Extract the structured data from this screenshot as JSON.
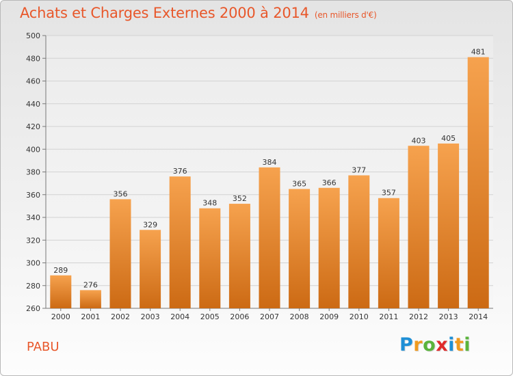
{
  "header": {
    "title": "Achats et Charges Externes 2000 à 2014",
    "subtitle": "(en milliers d'€)"
  },
  "footer": {
    "commune": "PABU",
    "brand_letters": [
      "P",
      "r",
      "o",
      "x",
      "i",
      "t",
      "i"
    ],
    "brand_colors": [
      "#1e8fd6",
      "#f09a1e",
      "#5ab43c",
      "#e02b2b",
      "#1e8fd6",
      "#f09a1e",
      "#5ab43c"
    ]
  },
  "chart_data": {
    "type": "bar",
    "title": "Achats et Charges Externes 2000 à 2014",
    "subtitle": "(en milliers d'€)",
    "categories": [
      "2000",
      "2001",
      "2002",
      "2003",
      "2004",
      "2005",
      "2006",
      "2007",
      "2008",
      "2009",
      "2010",
      "2011",
      "2012",
      "2013",
      "2014"
    ],
    "values": [
      289,
      276,
      356,
      329,
      376,
      348,
      352,
      384,
      365,
      366,
      377,
      357,
      403,
      405,
      481
    ],
    "ylim": [
      260,
      500
    ],
    "yticks": [
      260,
      280,
      300,
      320,
      340,
      360,
      380,
      400,
      420,
      440,
      460,
      480,
      500
    ],
    "grid": true,
    "bar_color_top": "#f6a24e",
    "bar_color_bottom": "#cc6a14"
  }
}
